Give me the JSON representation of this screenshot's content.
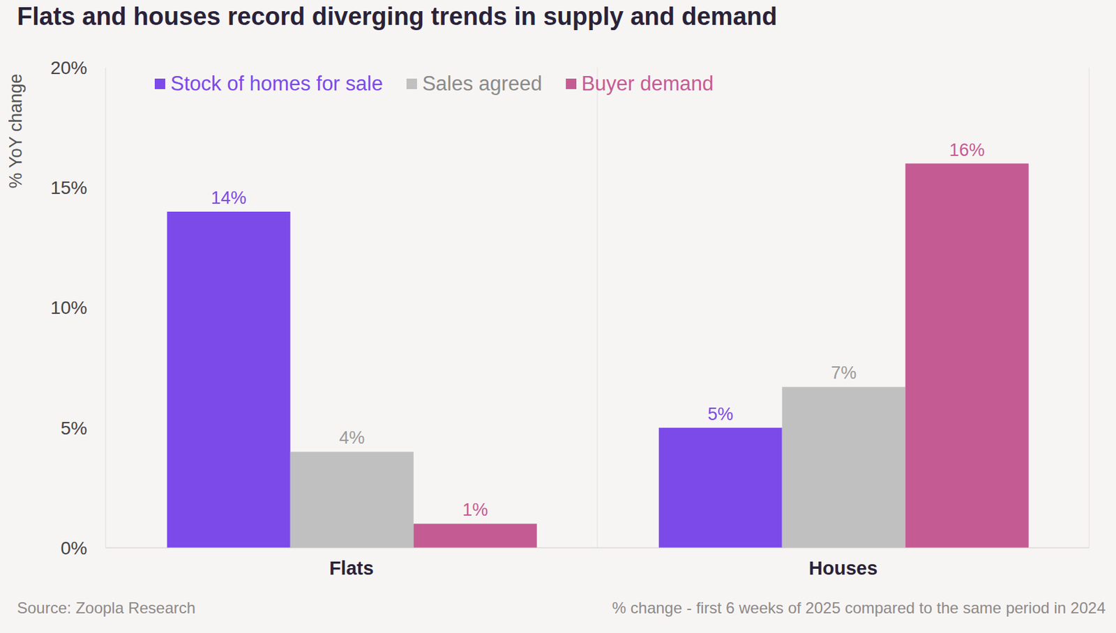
{
  "chart_data": {
    "type": "bar",
    "title": "Flats and houses record diverging trends in supply and demand",
    "y_label": "% YoY change",
    "categories": [
      "Flats",
      "Houses"
    ],
    "series": [
      {
        "name": "Stock of homes for sale",
        "color": "#7b4ae8",
        "values": [
          14,
          5
        ],
        "value_labels": [
          "14%",
          "5%"
        ]
      },
      {
        "name": "Sales agreed",
        "color": "#c0c0c0",
        "values": [
          4,
          6.7
        ],
        "value_labels": [
          "4%",
          "7%"
        ]
      },
      {
        "name": "Buyer demand",
        "color": "#c45c93",
        "values": [
          1,
          16
        ],
        "value_labels": [
          "1%",
          "16%"
        ]
      }
    ],
    "ylim": [
      0,
      20
    ],
    "yticks": [
      {
        "value": 0,
        "label": "0%"
      },
      {
        "value": 5,
        "label": "5%"
      },
      {
        "value": 10,
        "label": "10%"
      },
      {
        "value": 15,
        "label": "15%"
      },
      {
        "value": 20,
        "label": "20%"
      }
    ],
    "data_labels": true,
    "legend": "upper left",
    "source": "Source: Zoopla Research",
    "note": "% change - first 6 weeks of 2025 compared to the same period in 2024"
  }
}
